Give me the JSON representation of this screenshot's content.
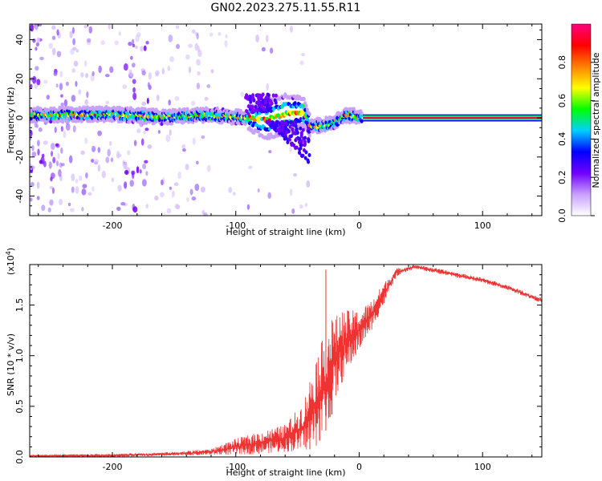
{
  "title": "GN02.2023.275.11.55.R11",
  "chart_data": [
    {
      "type": "heatmap",
      "xlabel": "Height of straight line (km)",
      "ylabel": "Frequency (Hz)",
      "xlim": [
        -267,
        148
      ],
      "ylim": [
        -50,
        48
      ],
      "xticks": [
        -200,
        -100,
        0,
        100
      ],
      "yticks": [
        -40,
        -20,
        0,
        20,
        40
      ],
      "colorbar": {
        "label": "Normalized spectral amplitude",
        "range": [
          0,
          1
        ],
        "ticks": [
          "0.0",
          "0.2",
          "0.4",
          "0.6",
          "0.8"
        ],
        "colors": [
          "#ffffff",
          "#c8a0ff",
          "#7000ff",
          "#0000ff",
          "#00d0ff",
          "#00ff00",
          "#ffff00",
          "#ff8000",
          "#ff0000",
          "#ff0080"
        ]
      },
      "ridge": {
        "center_hz": [
          {
            "x": -267,
            "y": 1.5
          },
          {
            "x": -200,
            "y": 2
          },
          {
            "x": -160,
            "y": 0.5
          },
          {
            "x": -120,
            "y": 1.5
          },
          {
            "x": -90,
            "y": 0
          },
          {
            "x": -75,
            "y": -1
          },
          {
            "x": -60,
            "y": 2
          },
          {
            "x": -45,
            "y": 3
          },
          {
            "x": -40,
            "y": -4
          },
          {
            "x": -30,
            "y": -4
          },
          {
            "x": -20,
            "y": -2
          },
          {
            "x": -10,
            "y": 1.5
          },
          {
            "x": 0,
            "y": 0.5
          },
          {
            "x": 148,
            "y": 0
          }
        ],
        "flat_region_start_km": 3
      }
    },
    {
      "type": "line",
      "xlabel": "Height of straight line (km)",
      "ylabel": "SNR (10 * v/v)",
      "multiplier": "(x10",
      "multiplier_exp": "4",
      "multiplier_close": ")",
      "xlim": [
        -267,
        148
      ],
      "ylim": [
        0,
        1.9
      ],
      "xticks": [
        -200,
        -100,
        0,
        100
      ],
      "yticks": [
        "0.0",
        "0.5",
        "1.0",
        "1.5"
      ],
      "series_color": "#ee3333",
      "envelope": [
        {
          "x": -267,
          "lo": 0.0,
          "hi": 0.02
        },
        {
          "x": -200,
          "lo": 0.0,
          "hi": 0.03
        },
        {
          "x": -150,
          "lo": 0.01,
          "hi": 0.05
        },
        {
          "x": -120,
          "lo": 0.02,
          "hi": 0.08
        },
        {
          "x": -100,
          "lo": 0.02,
          "hi": 0.18
        },
        {
          "x": -80,
          "lo": 0.03,
          "hi": 0.25
        },
        {
          "x": -60,
          "lo": 0.05,
          "hi": 0.32
        },
        {
          "x": -45,
          "lo": 0.05,
          "hi": 0.55
        },
        {
          "x": -35,
          "lo": 0.1,
          "hi": 1.0
        },
        {
          "x": -25,
          "lo": 0.3,
          "hi": 1.3
        },
        {
          "x": -15,
          "lo": 0.7,
          "hi": 1.45
        },
        {
          "x": 0,
          "lo": 1.05,
          "hi": 1.45
        },
        {
          "x": 10,
          "lo": 1.25,
          "hi": 1.55
        },
        {
          "x": 20,
          "lo": 1.5,
          "hi": 1.72
        },
        {
          "x": 30,
          "lo": 1.78,
          "hi": 1.86
        },
        {
          "x": 45,
          "lo": 1.86,
          "hi": 1.9
        },
        {
          "x": 60,
          "lo": 1.82,
          "hi": 1.87
        },
        {
          "x": 80,
          "lo": 1.77,
          "hi": 1.82
        },
        {
          "x": 100,
          "lo": 1.72,
          "hi": 1.77
        },
        {
          "x": 120,
          "lo": 1.65,
          "hi": 1.7
        },
        {
          "x": 148,
          "lo": 1.52,
          "hi": 1.57
        }
      ],
      "spikes": [
        {
          "x": -27,
          "y": 1.85
        },
        {
          "x": -32,
          "y": 0.75
        },
        {
          "x": -22,
          "y": 1.35
        },
        {
          "x": -40,
          "y": 0.6
        }
      ]
    }
  ]
}
